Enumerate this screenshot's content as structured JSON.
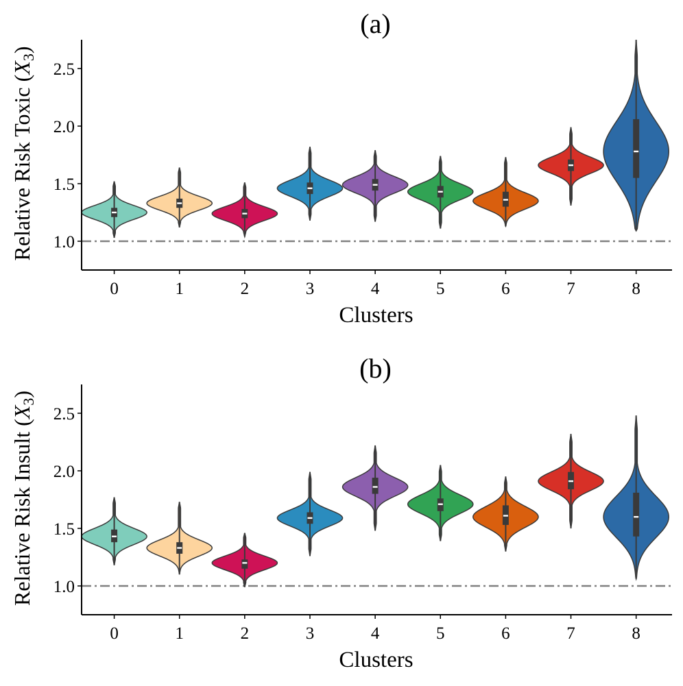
{
  "chart_data": [
    {
      "type": "violin",
      "panel": "a",
      "title": "(a)",
      "ylabel": "Relative Risk Toxic",
      "ylabel_var": "X",
      "ylabel_sub": "3",
      "xlabel": "Clusters",
      "ylim": [
        0.75,
        2.75
      ],
      "yticks": [
        "1.0",
        "1.5",
        "2.0",
        "2.5"
      ],
      "categories": [
        "0",
        "1",
        "2",
        "3",
        "4",
        "5",
        "6",
        "7",
        "8"
      ],
      "reference_line": 1.0,
      "violins": [
        {
          "cluster": "0",
          "min": 1.03,
          "max": 1.52,
          "median": 1.25,
          "q1": 1.21,
          "q3": 1.29,
          "density_peak": 1.25,
          "spread": 0.06,
          "color": "#7fcdbb"
        },
        {
          "cluster": "1",
          "min": 1.12,
          "max": 1.64,
          "median": 1.33,
          "q1": 1.29,
          "q3": 1.37,
          "density_peak": 1.33,
          "spread": 0.06,
          "color": "#fdd49e"
        },
        {
          "cluster": "2",
          "min": 1.04,
          "max": 1.51,
          "median": 1.24,
          "q1": 1.2,
          "q3": 1.28,
          "density_peak": 1.24,
          "spread": 0.06,
          "color": "#ce1256"
        },
        {
          "cluster": "3",
          "min": 1.18,
          "max": 1.82,
          "median": 1.46,
          "q1": 1.41,
          "q3": 1.51,
          "density_peak": 1.46,
          "spread": 0.07,
          "color": "#2b8cbe"
        },
        {
          "cluster": "4",
          "min": 1.17,
          "max": 1.79,
          "median": 1.49,
          "q1": 1.44,
          "q3": 1.54,
          "density_peak": 1.49,
          "spread": 0.07,
          "color": "#8c5fae"
        },
        {
          "cluster": "5",
          "min": 1.11,
          "max": 1.74,
          "median": 1.43,
          "q1": 1.38,
          "q3": 1.48,
          "density_peak": 1.43,
          "spread": 0.07,
          "color": "#31a354"
        },
        {
          "cluster": "6",
          "min": 1.13,
          "max": 1.73,
          "median": 1.36,
          "q1": 1.3,
          "q3": 1.43,
          "density_peak": 1.35,
          "spread": 0.07,
          "color": "#d95f0e"
        },
        {
          "cluster": "7",
          "min": 1.31,
          "max": 1.99,
          "median": 1.66,
          "q1": 1.61,
          "q3": 1.71,
          "density_peak": 1.66,
          "spread": 0.07,
          "color": "#d73027"
        },
        {
          "cluster": "8",
          "min": 1.09,
          "max": 2.75,
          "median": 1.78,
          "q1": 1.55,
          "q3": 2.06,
          "density_peak": 1.78,
          "spread": 0.26,
          "color": "#2c6aa6"
        }
      ]
    },
    {
      "type": "violin",
      "panel": "b",
      "title": "(b)",
      "ylabel": "Relative Risk Insult",
      "ylabel_var": "X",
      "ylabel_sub": "3",
      "xlabel": "Clusters",
      "ylim": [
        0.75,
        2.75
      ],
      "yticks": [
        "1.0",
        "1.5",
        "2.0",
        "2.5"
      ],
      "categories": [
        "0",
        "1",
        "2",
        "3",
        "4",
        "5",
        "6",
        "7",
        "8"
      ],
      "reference_line": 1.0,
      "violins": [
        {
          "cluster": "0",
          "min": 1.18,
          "max": 1.77,
          "median": 1.43,
          "q1": 1.38,
          "q3": 1.49,
          "density_peak": 1.43,
          "spread": 0.07,
          "color": "#7fcdbb"
        },
        {
          "cluster": "1",
          "min": 1.1,
          "max": 1.73,
          "median": 1.33,
          "q1": 1.28,
          "q3": 1.38,
          "density_peak": 1.33,
          "spread": 0.07,
          "color": "#fdd49e"
        },
        {
          "cluster": "2",
          "min": 0.99,
          "max": 1.46,
          "median": 1.2,
          "q1": 1.15,
          "q3": 1.23,
          "density_peak": 1.2,
          "spread": 0.06,
          "color": "#ce1256"
        },
        {
          "cluster": "3",
          "min": 1.26,
          "max": 1.99,
          "median": 1.59,
          "q1": 1.54,
          "q3": 1.64,
          "density_peak": 1.59,
          "spread": 0.07,
          "color": "#2b8cbe"
        },
        {
          "cluster": "4",
          "min": 1.48,
          "max": 2.22,
          "median": 1.86,
          "q1": 1.8,
          "q3": 1.94,
          "density_peak": 1.86,
          "spread": 0.08,
          "color": "#8c5fae"
        },
        {
          "cluster": "5",
          "min": 1.39,
          "max": 2.05,
          "median": 1.71,
          "q1": 1.65,
          "q3": 1.76,
          "density_peak": 1.71,
          "spread": 0.08,
          "color": "#31a354"
        },
        {
          "cluster": "6",
          "min": 1.3,
          "max": 1.95,
          "median": 1.61,
          "q1": 1.53,
          "q3": 1.7,
          "density_peak": 1.6,
          "spread": 0.09,
          "color": "#d95f0e"
        },
        {
          "cluster": "7",
          "min": 1.5,
          "max": 2.32,
          "median": 1.91,
          "q1": 1.84,
          "q3": 1.99,
          "density_peak": 1.91,
          "spread": 0.08,
          "color": "#d73027"
        },
        {
          "cluster": "8",
          "min": 1.06,
          "max": 2.48,
          "median": 1.6,
          "q1": 1.43,
          "q3": 1.81,
          "density_peak": 1.6,
          "spread": 0.18,
          "color": "#2c6aa6"
        }
      ]
    }
  ]
}
